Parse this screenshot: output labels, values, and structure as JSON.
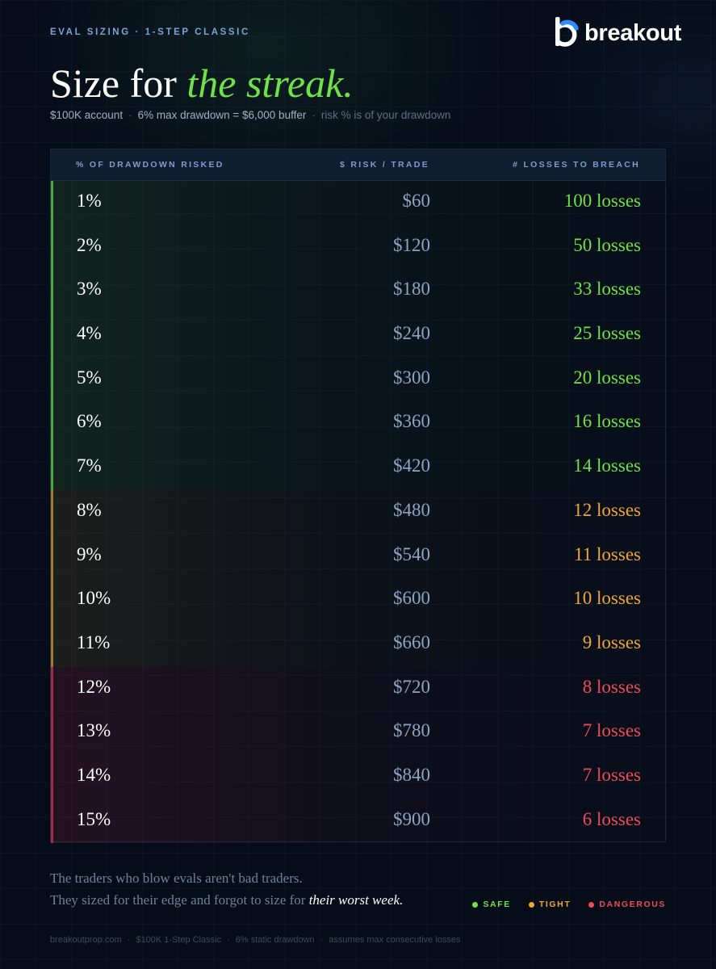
{
  "eyebrow": "EVAL SIZING · 1-STEP CLASSIC",
  "brand": {
    "name": "breakout"
  },
  "headline": {
    "main": "Size for ",
    "accent": "the streak."
  },
  "subline": {
    "account": "$100K account",
    "drawdown": "6% max drawdown = $6,000 buffer",
    "note": "risk % is of your drawdown"
  },
  "table": {
    "headers": [
      "% OF DRAWDOWN RISKED",
      "$ RISK / TRADE",
      "# LOSSES TO BREACH"
    ],
    "rows": [
      {
        "pct": "1%",
        "risk": "$60",
        "losses": "100 losses",
        "zone": "safe"
      },
      {
        "pct": "2%",
        "risk": "$120",
        "losses": "50 losses",
        "zone": "safe"
      },
      {
        "pct": "3%",
        "risk": "$180",
        "losses": "33 losses",
        "zone": "safe"
      },
      {
        "pct": "4%",
        "risk": "$240",
        "losses": "25 losses",
        "zone": "safe"
      },
      {
        "pct": "5%",
        "risk": "$300",
        "losses": "20 losses",
        "zone": "safe"
      },
      {
        "pct": "6%",
        "risk": "$360",
        "losses": "16 losses",
        "zone": "safe"
      },
      {
        "pct": "7%",
        "risk": "$420",
        "losses": "14 losses",
        "zone": "safe"
      },
      {
        "pct": "8%",
        "risk": "$480",
        "losses": "12 losses",
        "zone": "tight"
      },
      {
        "pct": "9%",
        "risk": "$540",
        "losses": "11 losses",
        "zone": "tight"
      },
      {
        "pct": "10%",
        "risk": "$600",
        "losses": "10 losses",
        "zone": "tight"
      },
      {
        "pct": "11%",
        "risk": "$660",
        "losses": "9 losses",
        "zone": "tight"
      },
      {
        "pct": "12%",
        "risk": "$720",
        "losses": "8 losses",
        "zone": "danger"
      },
      {
        "pct": "13%",
        "risk": "$780",
        "losses": "7 losses",
        "zone": "danger"
      },
      {
        "pct": "14%",
        "risk": "$840",
        "losses": "7 losses",
        "zone": "danger"
      },
      {
        "pct": "15%",
        "risk": "$900",
        "losses": "6 losses",
        "zone": "danger"
      }
    ]
  },
  "quote": {
    "line1": "The traders who blow evals aren't bad traders.",
    "line2": "They sized for their edge and forgot to size for ",
    "emphasis": "their worst week."
  },
  "legend": {
    "safe": "SAFE",
    "tight": "TIGHT",
    "danger": "DANGEROUS"
  },
  "colors": {
    "safe": "#6fe14a",
    "tight": "#f0a537",
    "danger": "#ee4b58",
    "background": "#060d19"
  },
  "footer": [
    "breakoutprop.com",
    "$100K 1-Step Classic",
    "6% static drawdown",
    "assumes max consecutive losses"
  ]
}
